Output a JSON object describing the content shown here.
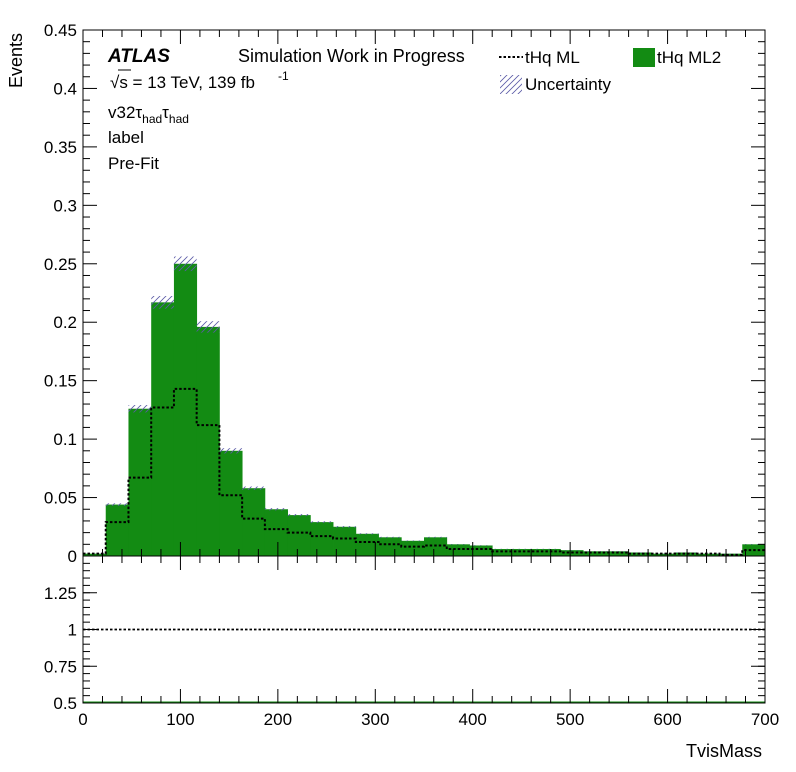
{
  "chart_data": {
    "type": "histogram",
    "x": {
      "label": "TvisMass",
      "range": [
        0,
        700
      ],
      "bin_width": 23.333,
      "ticks": [
        0,
        100,
        200,
        300,
        400,
        500,
        600,
        700
      ],
      "tick_labels": [
        "0",
        "100",
        "200",
        "300",
        "400",
        "500",
        "600",
        "700"
      ]
    },
    "top_panel": {
      "ylabel": "Events",
      "ylim": [
        0,
        0.45
      ],
      "yticks": [
        0,
        0.05,
        0.1,
        0.15,
        0.2,
        0.25,
        0.3,
        0.35,
        0.4,
        0.45
      ],
      "ytick_labels": [
        "0",
        "0.05",
        "0.1",
        "0.15",
        "0.2",
        "0.25",
        "0.3",
        "0.35",
        "0.4",
        "0.45"
      ]
    },
    "ratio_panel": {
      "ylim": [
        0.5,
        1.5
      ],
      "yticks": [
        0.5,
        0.75,
        1,
        1.25
      ],
      "ytick_labels": [
        "0.5",
        "0.75",
        "1",
        "1.25"
      ],
      "reference_line": 1
    },
    "series": [
      {
        "name": "tHq ML2",
        "style": "filled",
        "color": "#138b13",
        "values": [
          0.002,
          0.044,
          0.126,
          0.217,
          0.25,
          0.196,
          0.09,
          0.058,
          0.04,
          0.035,
          0.029,
          0.025,
          0.019,
          0.016,
          0.013,
          0.016,
          0.01,
          0.009,
          0.006,
          0.006,
          0.006,
          0.005,
          0.004,
          0.004,
          0.003,
          0.002,
          0.003,
          0.002,
          0.002,
          0.01
        ]
      },
      {
        "name": "tHq ML",
        "style": "dotted-line",
        "color": "#000000",
        "values": [
          0.002,
          0.029,
          0.067,
          0.127,
          0.143,
          0.112,
          0.052,
          0.032,
          0.023,
          0.02,
          0.017,
          0.015,
          0.012,
          0.01,
          0.008,
          0.009,
          0.006,
          0.006,
          0.004,
          0.004,
          0.004,
          0.003,
          0.003,
          0.003,
          0.002,
          0.002,
          0.002,
          0.002,
          0.001,
          0.005
        ]
      }
    ],
    "uncertainty": {
      "name": "Uncertainty",
      "style": "hatched",
      "color": "#5a5aa6",
      "relative": 0.025
    },
    "legend": {
      "placement": "top-right",
      "columns": 2
    },
    "annotations": {
      "atlas": "ATLAS",
      "status": "Simulation Work in Progress",
      "energy": "√s = 13 TeV, 139 fb",
      "energy_sup": "-1",
      "region_prefix": "v32",
      "tau": "τ",
      "had": "had",
      "label_line": "label",
      "fit_line": "Pre-Fit"
    }
  }
}
